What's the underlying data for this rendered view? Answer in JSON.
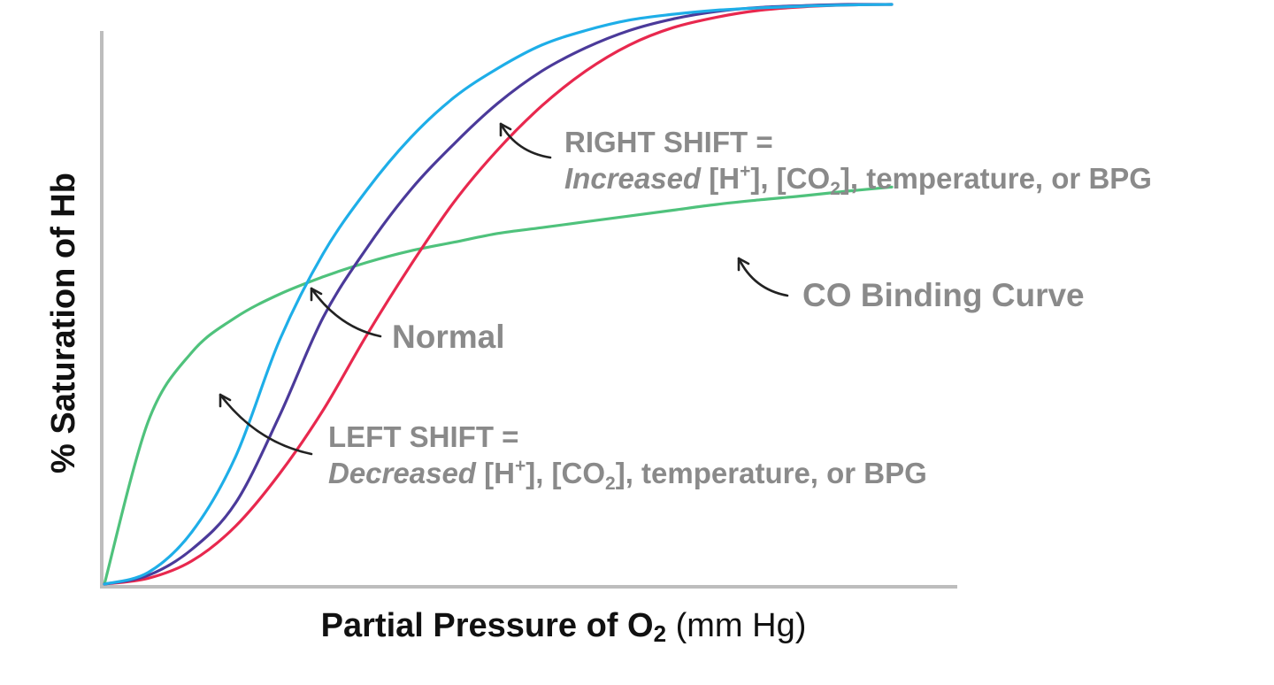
{
  "chart_data": {
    "type": "line",
    "xlabel_main": "Partial Pressure of O",
    "xlabel_sub": "2",
    "xlabel_unit": " (mm Hg)",
    "ylabel": "% Saturation of Hb",
    "xlim": [
      0,
      100
    ],
    "ylim": [
      0,
      100
    ],
    "grid": false,
    "x": [
      0,
      5,
      10,
      15,
      20,
      25,
      30,
      35,
      40,
      45,
      50,
      55,
      60,
      65,
      70,
      75,
      80,
      85,
      90
    ],
    "series": [
      {
        "key": "left",
        "color": "#1eaee8",
        "values": [
          0,
          2,
          9,
          22,
          42,
          57,
          68,
          77,
          84,
          89,
          93,
          95.5,
          97.3,
          98.3,
          99,
          99.4,
          99.7,
          99.9,
          100
        ]
      },
      {
        "key": "normal",
        "color": "#4b3a9a",
        "values": [
          0,
          1.5,
          6,
          14,
          29,
          46,
          58,
          68,
          76,
          83,
          88.5,
          92.5,
          95.5,
          97.5,
          98.8,
          99.5,
          99.8,
          100,
          100
        ]
      },
      {
        "key": "right",
        "color": "#e8284e",
        "values": [
          0,
          1,
          4,
          10,
          19,
          30,
          43,
          55,
          66,
          75,
          82.5,
          88.5,
          93,
          96,
          97.8,
          99,
          99.6,
          99.9,
          100
        ]
      },
      {
        "key": "co",
        "color": "#4fc27c",
        "values": [
          0,
          28,
          40,
          46,
          50,
          53,
          55.5,
          57.5,
          59,
          60.5,
          61.5,
          62.5,
          63.5,
          64.5,
          65.5,
          66.3,
          67,
          67.8,
          68.5
        ]
      }
    ],
    "annotations": {
      "right_shift": {
        "line1": "RIGHT SHIFT =",
        "italic": "Increased",
        "t1": " [H",
        "sup": "+",
        "t2": "], [CO",
        "sub": "2",
        "t3": "], temperature, or BPG"
      },
      "co_curve": "CO Binding Curve",
      "normal": "Normal",
      "left_shift": {
        "line1": "LEFT SHIFT =",
        "italic": "Decreased",
        "t1": " [H",
        "sup": "+",
        "t2": "], [CO",
        "sub": "2",
        "t3": "], temperature, or BPG"
      }
    }
  }
}
